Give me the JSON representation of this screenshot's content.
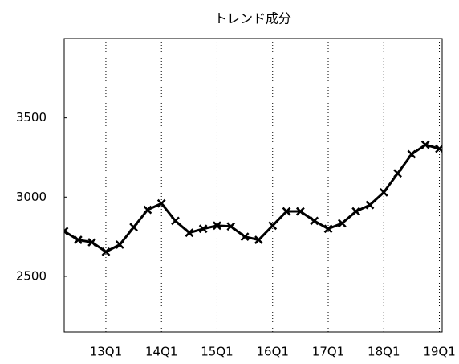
{
  "chart_data": {
    "type": "line",
    "title": "トレンド成分",
    "series": [
      {
        "color": "#000000",
        "x": [
          2012.25,
          2012.5,
          2012.75,
          2013.0,
          2013.25,
          2013.5,
          2013.75,
          2014.0,
          2014.25,
          2014.5,
          2014.75,
          2015.0,
          2015.25,
          2015.5,
          2015.75,
          2016.0,
          2016.25,
          2016.5,
          2016.75,
          2017.0,
          2017.25,
          2017.5,
          2017.75,
          2018.0,
          2018.25,
          2018.5,
          2018.75,
          2019.0
        ],
        "values": [
          2785,
          2730,
          2715,
          2655,
          2700,
          2810,
          2920,
          2960,
          2850,
          2775,
          2800,
          2820,
          2815,
          2750,
          2730,
          2820,
          2910,
          2910,
          2850,
          2800,
          2835,
          2910,
          2950,
          3030,
          3150,
          3270,
          3330,
          3305
        ]
      }
    ],
    "xlim": [
      2012.25,
      2019.05
    ],
    "xticks": [
      {
        "value": 2013,
        "label": "13Q1"
      },
      {
        "value": 2014,
        "label": "14Q1"
      },
      {
        "value": 2015,
        "label": "15Q1"
      },
      {
        "value": 2016,
        "label": "16Q1"
      },
      {
        "value": 2017,
        "label": "17Q1"
      },
      {
        "value": 2018,
        "label": "18Q1"
      },
      {
        "value": 2019,
        "label": "19Q1"
      }
    ],
    "ylim": [
      2150,
      4000
    ],
    "yticks": [
      2500,
      3000,
      3500
    ],
    "grid": true
  }
}
